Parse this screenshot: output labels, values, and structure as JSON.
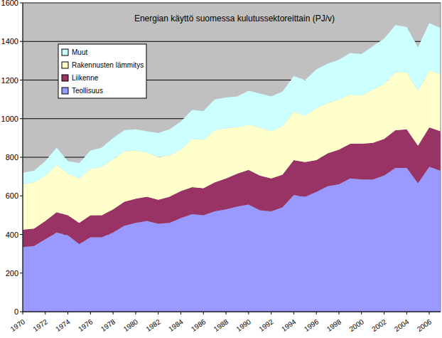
{
  "chart_data": {
    "type": "area",
    "stacked": true,
    "title": "Energian käyttö suomessa kulutussektoreittain (PJ/v)",
    "x": [
      1970,
      1971,
      1972,
      1973,
      1974,
      1975,
      1976,
      1977,
      1978,
      1979,
      1980,
      1981,
      1982,
      1983,
      1984,
      1985,
      1986,
      1987,
      1988,
      1989,
      1990,
      1991,
      1992,
      1993,
      1994,
      1995,
      1996,
      1997,
      1998,
      1999,
      2000,
      2001,
      2002,
      2003,
      2004,
      2005,
      2006,
      2007
    ],
    "xlim": [
      1970,
      2007
    ],
    "xticks": [
      1970,
      1972,
      1974,
      1976,
      1978,
      1980,
      1982,
      1984,
      1986,
      1988,
      1990,
      1992,
      1994,
      1996,
      1998,
      2000,
      2002,
      2004,
      2006
    ],
    "ylim": [
      0,
      1600
    ],
    "yticks": [
      0,
      200,
      400,
      600,
      800,
      1000,
      1200,
      1400,
      1600
    ],
    "grid": true,
    "legend": "upper-left",
    "series": [
      {
        "name": "Teollisuus",
        "color": "#9999ff",
        "values": [
          335,
          340,
          375,
          410,
          395,
          350,
          385,
          385,
          410,
          445,
          460,
          470,
          455,
          460,
          485,
          505,
          500,
          520,
          530,
          545,
          555,
          525,
          520,
          540,
          605,
          595,
          620,
          650,
          660,
          690,
          685,
          685,
          705,
          745,
          745,
          665,
          750,
          730
        ]
      },
      {
        "name": "Liikenne",
        "color": "#993366",
        "values": [
          90,
          90,
          95,
          105,
          105,
          110,
          115,
          115,
          120,
          125,
          125,
          125,
          125,
          135,
          140,
          140,
          140,
          150,
          160,
          170,
          180,
          180,
          170,
          170,
          180,
          180,
          165,
          170,
          180,
          180,
          185,
          190,
          190,
          195,
          200,
          195,
          205,
          205
        ]
      },
      {
        "name": "Rakennusten lämmitys",
        "color": "#ffffcc",
        "values": [
          235,
          240,
          235,
          245,
          215,
          230,
          240,
          250,
          260,
          260,
          250,
          230,
          220,
          215,
          215,
          250,
          250,
          270,
          260,
          240,
          235,
          250,
          245,
          250,
          250,
          240,
          270,
          260,
          260,
          255,
          250,
          275,
          285,
          300,
          295,
          285,
          295,
          295
        ]
      },
      {
        "name": "Muut",
        "color": "#ccffff",
        "values": [
          60,
          60,
          75,
          90,
          65,
          80,
          95,
          100,
          110,
          110,
          110,
          110,
          125,
          135,
          145,
          150,
          150,
          160,
          160,
          160,
          175,
          175,
          180,
          180,
          185,
          185,
          200,
          205,
          205,
          215,
          215,
          225,
          235,
          245,
          235,
          225,
          245,
          240
        ]
      }
    ]
  }
}
